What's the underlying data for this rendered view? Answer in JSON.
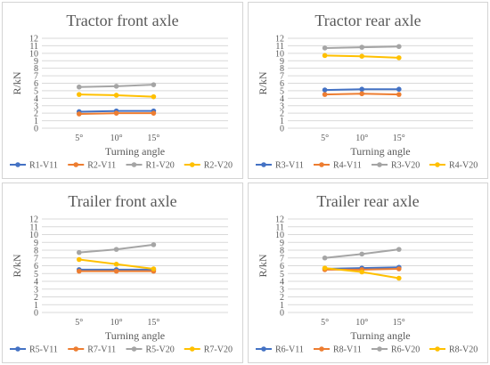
{
  "chart_data": [
    {
      "type": "line",
      "title": "Tractor front axle",
      "xlabel": "Turning angle",
      "ylabel": "R/kN",
      "categories": [
        "5°",
        "10°",
        "15°"
      ],
      "ylim": [
        0,
        12
      ],
      "yticks": [
        "0",
        "1",
        "2",
        "3",
        "4",
        "5",
        "6",
        "7",
        "8",
        "9",
        "10",
        "11",
        "12"
      ],
      "grid": true,
      "legend": "bottom",
      "series": [
        {
          "name": "R1-V11",
          "color": "#4472c4",
          "values": [
            2.2,
            2.3,
            2.3
          ]
        },
        {
          "name": "R2-V11",
          "color": "#ed7d31",
          "values": [
            1.9,
            2.0,
            2.0
          ]
        },
        {
          "name": "R1-V20",
          "color": "#a5a5a5",
          "values": [
            5.5,
            5.6,
            5.8
          ]
        },
        {
          "name": "R2-V20",
          "color": "#ffc000",
          "values": [
            4.5,
            4.4,
            4.2
          ]
        }
      ]
    },
    {
      "type": "line",
      "title": "Tractor rear axle",
      "xlabel": "Turning angle",
      "ylabel": "R/kN",
      "categories": [
        "5°",
        "10°",
        "15°"
      ],
      "ylim": [
        0,
        12
      ],
      "yticks": [
        "0",
        "1",
        "2",
        "3",
        "4",
        "5",
        "6",
        "7",
        "8",
        "9",
        "10",
        "11",
        "12"
      ],
      "grid": true,
      "legend": "bottom",
      "series": [
        {
          "name": "R3-V11",
          "color": "#4472c4",
          "values": [
            5.1,
            5.2,
            5.2
          ]
        },
        {
          "name": "R4-V11",
          "color": "#ed7d31",
          "values": [
            4.5,
            4.6,
            4.5
          ]
        },
        {
          "name": "R3-V20",
          "color": "#a5a5a5",
          "values": [
            10.7,
            10.8,
            10.9
          ]
        },
        {
          "name": "R4-V20",
          "color": "#ffc000",
          "values": [
            9.7,
            9.6,
            9.4
          ]
        }
      ]
    },
    {
      "type": "line",
      "title": "Trailer front axle",
      "xlabel": "Turning angle",
      "ylabel": "R/kN",
      "categories": [
        "5°",
        "10°",
        "15°"
      ],
      "ylim": [
        0,
        12
      ],
      "yticks": [
        "0",
        "1",
        "2",
        "3",
        "4",
        "5",
        "6",
        "7",
        "8",
        "9",
        "10",
        "11",
        "12"
      ],
      "grid": true,
      "legend": "bottom",
      "series": [
        {
          "name": "R5-V11",
          "color": "#4472c4",
          "values": [
            5.5,
            5.5,
            5.5
          ]
        },
        {
          "name": "R7-V11",
          "color": "#ed7d31",
          "values": [
            5.3,
            5.3,
            5.3
          ]
        },
        {
          "name": "R5-V20",
          "color": "#a5a5a5",
          "values": [
            7.7,
            8.1,
            8.7
          ]
        },
        {
          "name": "R7-V20",
          "color": "#ffc000",
          "values": [
            6.8,
            6.2,
            5.6
          ]
        }
      ]
    },
    {
      "type": "line",
      "title": "Trailer rear axle",
      "xlabel": "Turning angle",
      "ylabel": "R/kN",
      "categories": [
        "5°",
        "10°",
        "15°"
      ],
      "ylim": [
        0,
        12
      ],
      "yticks": [
        "0",
        "1",
        "2",
        "3",
        "4",
        "5",
        "6",
        "7",
        "8",
        "9",
        "10",
        "11",
        "12"
      ],
      "grid": true,
      "legend": "bottom",
      "series": [
        {
          "name": "R6-V11",
          "color": "#4472c4",
          "values": [
            5.6,
            5.7,
            5.8
          ]
        },
        {
          "name": "R8-V11",
          "color": "#ed7d31",
          "values": [
            5.5,
            5.5,
            5.6
          ]
        },
        {
          "name": "R6-V20",
          "color": "#a5a5a5",
          "values": [
            7.0,
            7.5,
            8.1
          ]
        },
        {
          "name": "R8-V20",
          "color": "#ffc000",
          "values": [
            5.7,
            5.2,
            4.4
          ]
        }
      ]
    }
  ]
}
